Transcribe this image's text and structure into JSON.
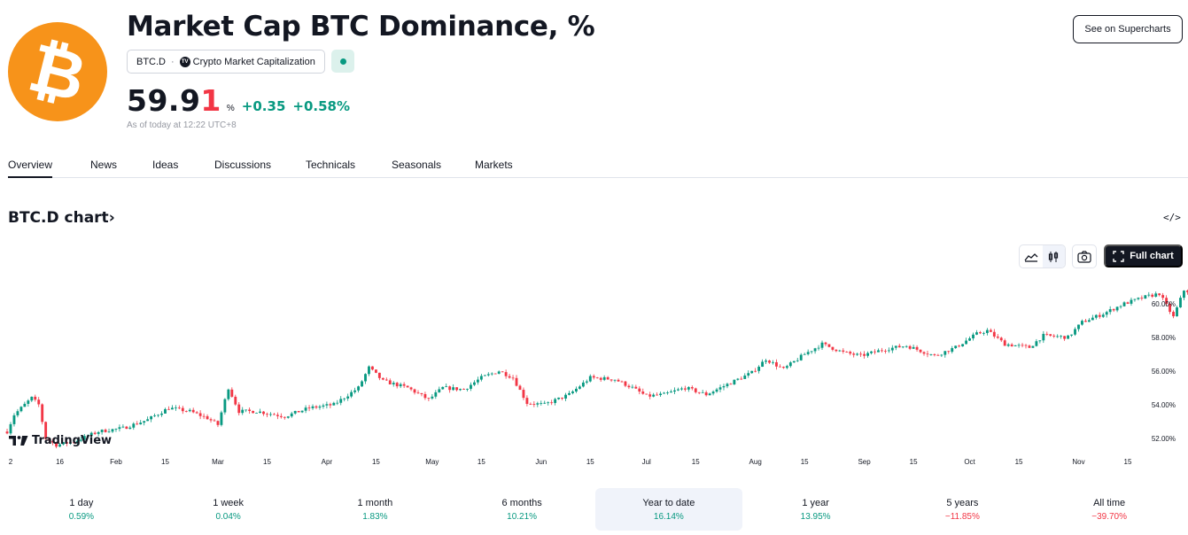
{
  "header": {
    "title": "Market Cap BTC Dominance, %",
    "symbol": "BTC.D",
    "symbol_sep": "·",
    "source": "Crypto Market Capitalization",
    "price_main": "59.9",
    "price_last": "1",
    "unit": "%",
    "change_abs": "+0.35",
    "change_pct": "+0.58%",
    "as_of": "As of today at 12:22 UTC+8",
    "supercharts_button": "See on Supercharts",
    "logo_glyph": "₿"
  },
  "tabs": [
    "Overview",
    "News",
    "Ideas",
    "Discussions",
    "Technicals",
    "Seasonals",
    "Markets"
  ],
  "chart_section": {
    "title": "BTC.D chart",
    "chevron": "›",
    "embed_icon": "</>",
    "full_chart_label": "Full chart",
    "watermark": "TradingView"
  },
  "icons": {
    "area_chart": "area-chart-icon",
    "candles": "candles-icon",
    "camera": "camera-icon",
    "fullscreen": "fullscreen-icon",
    "embed": "code-icon"
  },
  "colors": {
    "up": "#089981",
    "down": "#f23645",
    "brand": "#f7931a",
    "dark": "#131722"
  },
  "chart_data": {
    "type": "candlestick",
    "title": "",
    "y_axis_labels": [
      "60.00%",
      "58.00%",
      "56.00%",
      "54.00%",
      "52.00%"
    ],
    "y_ticks": [
      60,
      58,
      56,
      54,
      52
    ],
    "ylim": [
      51.2,
      61.2
    ],
    "x_axis_labels": [
      "2",
      "16",
      "Feb",
      "15",
      "Mar",
      "15",
      "Apr",
      "15",
      "May",
      "15",
      "Jun",
      "15",
      "Jul",
      "15",
      "Aug",
      "15",
      "Sep",
      "15",
      "Oct",
      "15",
      "Nov",
      "15"
    ],
    "x_tick_dates": [
      "2024-01-02",
      "2024-01-16",
      "2024-02-01",
      "2024-02-15",
      "2024-03-01",
      "2024-03-15",
      "2024-04-01",
      "2024-04-15",
      "2024-05-01",
      "2024-05-15",
      "2024-06-01",
      "2024-06-15",
      "2024-07-01",
      "2024-07-15",
      "2024-08-01",
      "2024-08-15",
      "2024-09-01",
      "2024-09-15",
      "2024-10-01",
      "2024-10-15",
      "2024-11-01",
      "2024-11-15"
    ],
    "close_path": [
      [
        "2024-01-01",
        52.4
      ],
      [
        "2024-01-03",
        53.4
      ],
      [
        "2024-01-08",
        54.4
      ],
      [
        "2024-01-10",
        54.0
      ],
      [
        "2024-01-12",
        52.0
      ],
      [
        "2024-01-15",
        51.6
      ],
      [
        "2024-01-20",
        51.8
      ],
      [
        "2024-01-27",
        52.4
      ],
      [
        "2024-02-03",
        52.6
      ],
      [
        "2024-02-10",
        53.1
      ],
      [
        "2024-02-16",
        53.8
      ],
      [
        "2024-02-22",
        53.6
      ],
      [
        "2024-02-27",
        53.2
      ],
      [
        "2024-03-01",
        52.8
      ],
      [
        "2024-03-04",
        55.0
      ],
      [
        "2024-03-07",
        53.6
      ],
      [
        "2024-03-12",
        53.6
      ],
      [
        "2024-03-20",
        53.3
      ],
      [
        "2024-03-27",
        53.8
      ],
      [
        "2024-04-03",
        54.0
      ],
      [
        "2024-04-10",
        55.0
      ],
      [
        "2024-04-13",
        56.2
      ],
      [
        "2024-04-17",
        55.4
      ],
      [
        "2024-04-24",
        55.0
      ],
      [
        "2024-04-30",
        54.3
      ],
      [
        "2024-05-04",
        55.0
      ],
      [
        "2024-05-10",
        54.9
      ],
      [
        "2024-05-15",
        55.6
      ],
      [
        "2024-05-20",
        56.0
      ],
      [
        "2024-05-24",
        55.6
      ],
      [
        "2024-05-28",
        54.1
      ],
      [
        "2024-06-02",
        54.0
      ],
      [
        "2024-06-09",
        54.6
      ],
      [
        "2024-06-15",
        55.6
      ],
      [
        "2024-06-22",
        55.5
      ],
      [
        "2024-06-27",
        55.0
      ],
      [
        "2024-07-01",
        54.5
      ],
      [
        "2024-07-06",
        54.6
      ],
      [
        "2024-07-12",
        55.0
      ],
      [
        "2024-07-18",
        54.6
      ],
      [
        "2024-07-25",
        55.3
      ],
      [
        "2024-07-31",
        55.9
      ],
      [
        "2024-08-04",
        56.7
      ],
      [
        "2024-08-09",
        56.1
      ],
      [
        "2024-08-15",
        57.0
      ],
      [
        "2024-08-20",
        57.6
      ],
      [
        "2024-08-26",
        57.1
      ],
      [
        "2024-08-31",
        56.9
      ],
      [
        "2024-09-07",
        57.3
      ],
      [
        "2024-09-13",
        57.5
      ],
      [
        "2024-09-17",
        57.2
      ],
      [
        "2024-09-21",
        56.9
      ],
      [
        "2024-09-27",
        57.4
      ],
      [
        "2024-10-03",
        58.2
      ],
      [
        "2024-10-06",
        58.4
      ],
      [
        "2024-10-11",
        57.6
      ],
      [
        "2024-10-18",
        57.4
      ],
      [
        "2024-10-22",
        58.1
      ],
      [
        "2024-10-29",
        58.0
      ],
      [
        "2024-11-02",
        58.9
      ],
      [
        "2024-11-08",
        59.4
      ],
      [
        "2024-11-14",
        60.0
      ],
      [
        "2024-11-20",
        60.4
      ],
      [
        "2024-11-24",
        60.6
      ],
      [
        "2024-11-26",
        59.9
      ],
      [
        "2024-11-28",
        59.2
      ],
      [
        "2024-12-01",
        60.8
      ],
      [
        "2024-12-05",
        60.6
      ],
      [
        "2024-12-07",
        59.9
      ]
    ]
  },
  "performance": [
    {
      "label": "1 day",
      "value": "0.59%",
      "dir": "pos"
    },
    {
      "label": "1 week",
      "value": "0.04%",
      "dir": "pos"
    },
    {
      "label": "1 month",
      "value": "1.83%",
      "dir": "pos"
    },
    {
      "label": "6 months",
      "value": "10.21%",
      "dir": "pos"
    },
    {
      "label": "Year to date",
      "value": "16.14%",
      "dir": "pos",
      "active": true
    },
    {
      "label": "1 year",
      "value": "13.95%",
      "dir": "pos"
    },
    {
      "label": "5 years",
      "value": "−11.85%",
      "dir": "neg"
    },
    {
      "label": "All time",
      "value": "−39.70%",
      "dir": "neg"
    }
  ]
}
